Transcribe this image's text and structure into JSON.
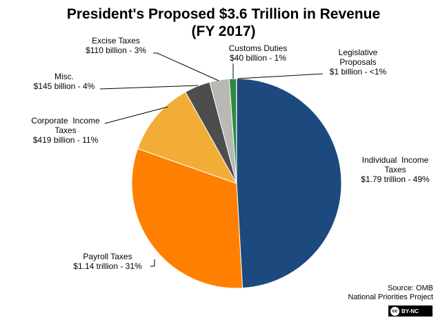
{
  "chart_data": {
    "type": "pie",
    "title": "President's Proposed $3.6 Trillion in Revenue",
    "subtitle": "(FY 2017)",
    "slices": [
      {
        "category": "Individual Income Taxes",
        "value": 1790,
        "unit": "billion",
        "label_lines": [
          "Individual  Income",
          "Taxes",
          "$1.79 trillion - 49%"
        ],
        "percent_label": "49%",
        "color": "#1c4a7e"
      },
      {
        "category": "Payroll Taxes",
        "value": 1140,
        "unit": "billion",
        "label_lines": [
          "Payroll Taxes",
          "$1.14 trillion - 31%"
        ],
        "percent_label": "31%",
        "color": "#ff8000"
      },
      {
        "category": "Corporate Income Taxes",
        "value": 419,
        "unit": "billion",
        "label_lines": [
          "Corporate  Income",
          "Taxes",
          "$419 billion - 11%"
        ],
        "percent_label": "11%",
        "color": "#f2ad37"
      },
      {
        "category": "Misc.",
        "value": 145,
        "unit": "billion",
        "label_lines": [
          "Misc.",
          "$145 billion - 4%"
        ],
        "percent_label": "4%",
        "color": "#4d4d4d"
      },
      {
        "category": "Excise Taxes",
        "value": 110,
        "unit": "billion",
        "label_lines": [
          "Excise Taxes",
          "$110 billion - 3%"
        ],
        "percent_label": "3%",
        "color": "#b8b8b4"
      },
      {
        "category": "Customs Duties",
        "value": 40,
        "unit": "billion",
        "label_lines": [
          "Customs Duties",
          "$40 billion - 1%"
        ],
        "percent_label": "1%",
        "color": "#2e8b3d"
      },
      {
        "category": "Legislative Proposals",
        "value": 1,
        "unit": "billion",
        "label_lines": [
          "Legislative",
          "Proposals",
          "$1 billion - <1%"
        ],
        "percent_label": "<1%",
        "color": "#3a62a3"
      }
    ],
    "legend": "none"
  },
  "source": {
    "line1": "Source: OMB",
    "line2": "National Priorities Project"
  },
  "license": {
    "badge": "cc",
    "label": "BY-NC"
  }
}
